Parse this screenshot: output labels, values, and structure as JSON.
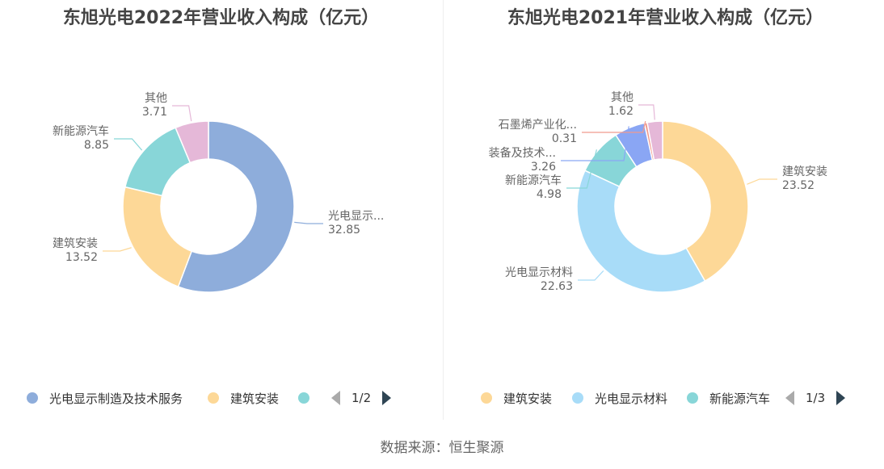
{
  "source": "数据来源：恒生聚源",
  "chart_data": [
    {
      "type": "pie",
      "title": "东旭光电2022年营业收入构成（亿元）",
      "series": [
        {
          "label": "光电显示...",
          "legend": "光电显示制造及技术服务",
          "value": 32.85,
          "value_text": "32.85",
          "color": "#8eaddb"
        },
        {
          "label": "建筑安装",
          "legend": "建筑安装",
          "value": 13.52,
          "value_text": "13.52",
          "color": "#fdd897"
        },
        {
          "label": "新能源汽车",
          "legend": "",
          "value": 8.85,
          "value_text": "8.85",
          "color": "#88d6d8"
        },
        {
          "label": "其他",
          "legend": "",
          "value": 3.71,
          "value_text": "3.71",
          "color": "#e5b8d8"
        }
      ],
      "legend_page": "1/2"
    },
    {
      "type": "pie",
      "title": "东旭光电2021年营业收入构成（亿元）",
      "series": [
        {
          "label": "建筑安装",
          "legend": "建筑安装",
          "value": 23.52,
          "value_text": "23.52",
          "color": "#fdd897"
        },
        {
          "label": "光电显示材料",
          "legend": "光电显示材料",
          "value": 22.63,
          "value_text": "22.63",
          "color": "#a8dcf8"
        },
        {
          "label": "新能源汽车",
          "legend": "新能源汽车",
          "value": 4.98,
          "value_text": "4.98",
          "color": "#88d6d8"
        },
        {
          "label": "装备及技术...",
          "legend": "",
          "value": 3.26,
          "value_text": "3.26",
          "color": "#8aa6f4"
        },
        {
          "label": "石墨烯产业化...",
          "legend": "",
          "value": 0.31,
          "value_text": "0.31",
          "color": "#f19a8e"
        },
        {
          "label": "其他",
          "legend": "",
          "value": 1.62,
          "value_text": "1.62",
          "color": "#e5b8d8"
        }
      ],
      "legend_page": "1/3"
    }
  ]
}
